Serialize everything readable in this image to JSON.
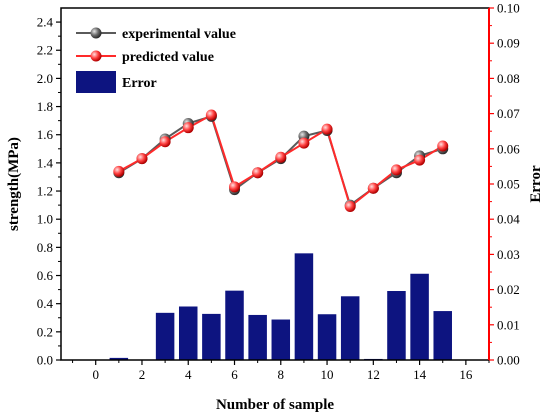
{
  "chart_data": {
    "type": "bar+line",
    "xlabel": "Number of sample",
    "ylabel_left": "strength(MPa)",
    "ylabel_right": "Error",
    "xlim": [
      -1.5,
      17
    ],
    "ylim_left": [
      0,
      2.5
    ],
    "ylim_right": [
      0,
      0.1
    ],
    "x_ticks": [
      "0",
      "2",
      "4",
      "6",
      "8",
      "10",
      "12",
      "14",
      "16"
    ],
    "y_left_ticks": [
      "0.0",
      "0.2",
      "0.4",
      "0.6",
      "0.8",
      "1.0",
      "1.2",
      "1.4",
      "1.6",
      "1.8",
      "2.0",
      "2.2",
      "2.4"
    ],
    "y_right_ticks": [
      "0.00",
      "0.01",
      "0.02",
      "0.03",
      "0.04",
      "0.05",
      "0.06",
      "0.07",
      "0.08",
      "0.09",
      "0.10"
    ],
    "x": [
      1,
      2,
      3,
      4,
      5,
      6,
      7,
      8,
      9,
      10,
      11,
      12,
      13,
      14,
      15
    ],
    "series": [
      {
        "name": "experimental value",
        "axis": "left",
        "type": "line",
        "color": "#5a5a5a",
        "values": [
          1.33,
          1.43,
          1.57,
          1.68,
          1.73,
          1.21,
          1.33,
          1.43,
          1.59,
          1.63,
          1.1,
          1.22,
          1.33,
          1.45,
          1.5
        ]
      },
      {
        "name": "predicted value",
        "axis": "left",
        "type": "line",
        "color": "#ff2a2a",
        "values": [
          1.34,
          1.43,
          1.55,
          1.65,
          1.74,
          1.23,
          1.33,
          1.44,
          1.54,
          1.64,
          1.09,
          1.22,
          1.35,
          1.42,
          1.52
        ]
      },
      {
        "name": "Error",
        "axis": "right",
        "type": "bar",
        "color": "#0d1480",
        "values": [
          0.0006,
          0.0001,
          0.0134,
          0.0152,
          0.0131,
          0.0197,
          0.0128,
          0.0115,
          0.0303,
          0.013,
          0.0181,
          0.0003,
          0.0196,
          0.0245,
          0.0139
        ]
      }
    ],
    "legend_position": "top-left",
    "grid": false
  },
  "colors": {
    "right_axis": "#ff0000",
    "frame": "#000000"
  }
}
